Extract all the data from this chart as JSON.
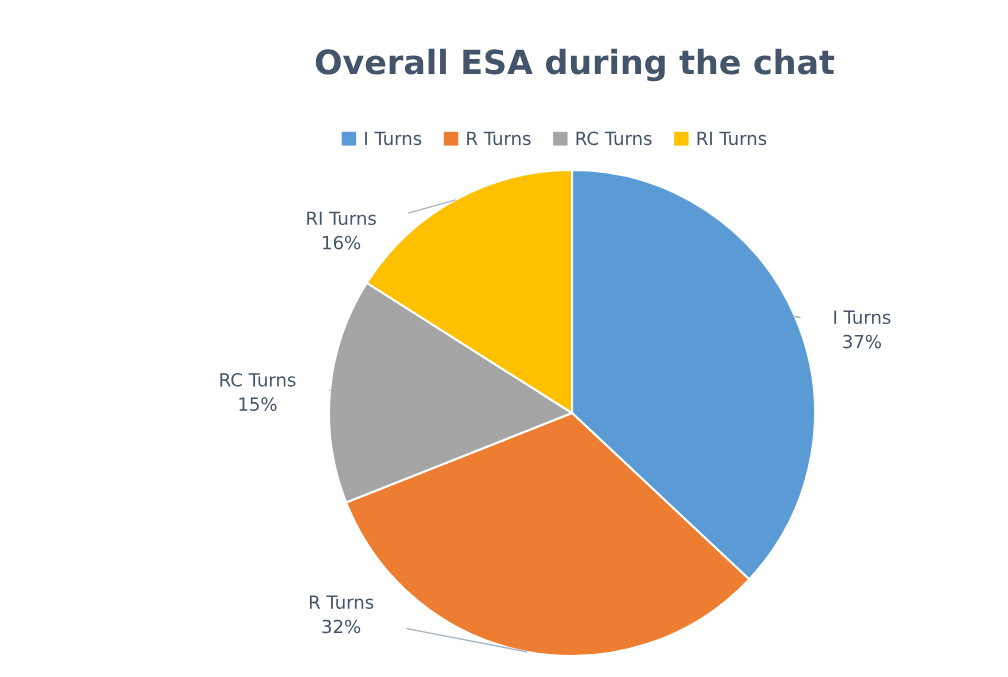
{
  "chart_data": {
    "type": "pie",
    "title": "Overall ESA during the chat",
    "categories": [
      "I Turns",
      "R Turns",
      "RC Turns",
      "RI Turns"
    ],
    "values": [
      37,
      32,
      15,
      16
    ],
    "value_labels": [
      "37%",
      "32%",
      "15%",
      "16%"
    ],
    "colors": [
      "#5b9bd5",
      "#ed7d31",
      "#a5a5a5",
      "#ffc000"
    ],
    "legend": "top"
  }
}
